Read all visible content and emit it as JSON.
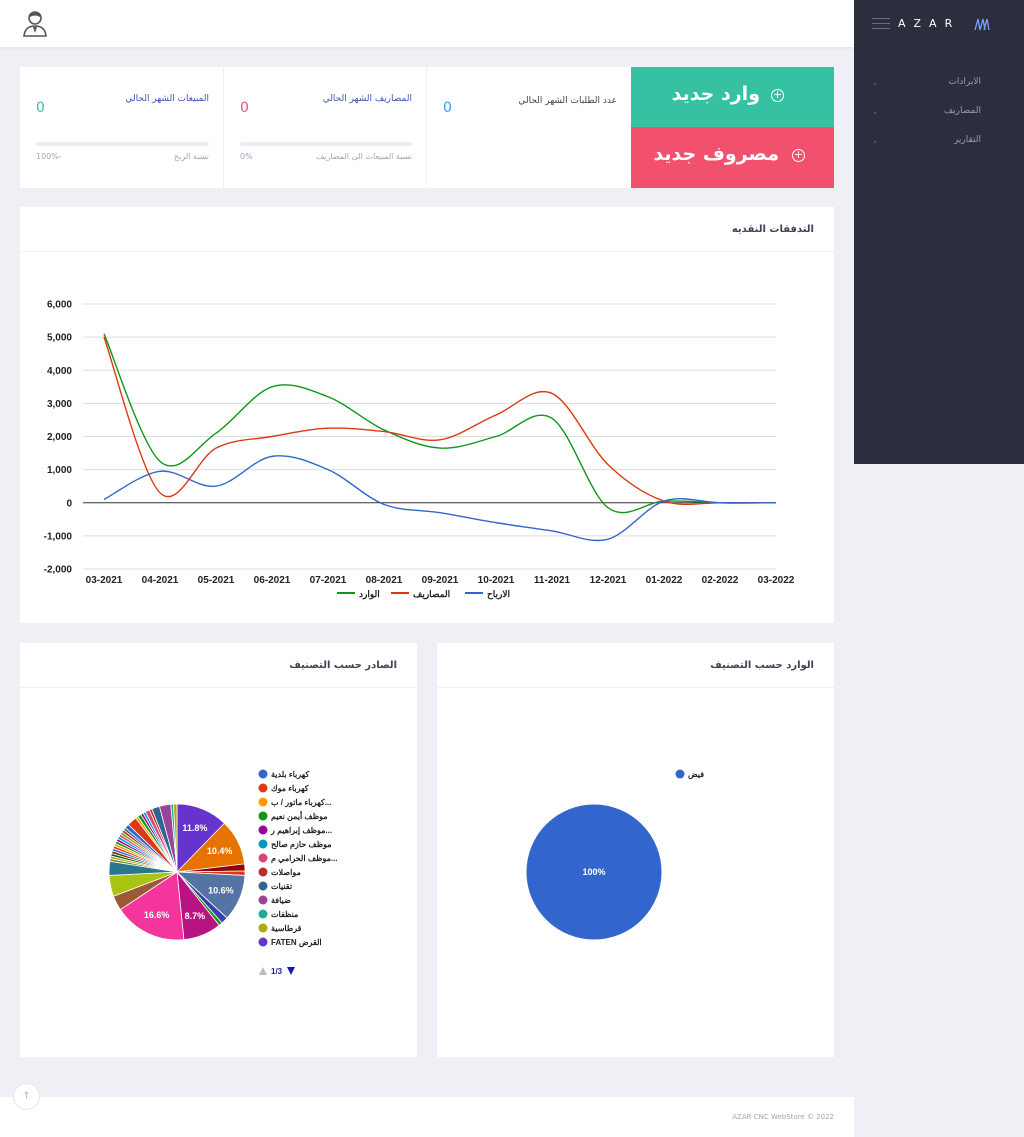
{
  "brand": {
    "name": "AZAR"
  },
  "sidebar": {
    "items": [
      {
        "label": "الايرادات"
      },
      {
        "label": "المصاريف"
      },
      {
        "label": "التقارير"
      }
    ]
  },
  "actions": {
    "new_income": "وارد جديد",
    "new_expense": "مصروف جديد"
  },
  "stats": {
    "sales": {
      "title": "المبيعات الشهر الحالي",
      "value": "0",
      "foot_label": "نسبة الربح",
      "foot_value": "-100%",
      "color": "#36c1a2"
    },
    "expenses": {
      "title": "المصاريف الشهر الحالي",
      "value": "0",
      "foot_label": "نسبة المبيعات الى المصاريف",
      "foot_value": "0%",
      "color": "#f2516e"
    },
    "orders": {
      "title": "عدد الطلبات الشهر الحالي",
      "value": "0",
      "color": "#3699ff"
    }
  },
  "cashflow": {
    "title": "التدفقات النقديه"
  },
  "out_by_category": {
    "title": "الصادر حسب التصنيف",
    "pager": "1/3"
  },
  "in_by_category": {
    "title": "الوارد حسب التصنيف"
  },
  "footer": {
    "copyright": "AZAR CNC WebStore © 2022"
  },
  "chart_data": [
    {
      "type": "line",
      "x": [
        "03-2021",
        "04-2021",
        "05-2021",
        "06-2021",
        "07-2021",
        "08-2021",
        "09-2021",
        "10-2021",
        "11-2021",
        "12-2021",
        "01-2022",
        "02-2022",
        "03-2022"
      ],
      "ylim": [
        -2000,
        6000
      ],
      "yticks": [
        "6,000",
        "5,000",
        "4,000",
        "3,000",
        "2,000",
        "1,000",
        "0",
        "-1,000",
        "-2,000"
      ],
      "grid": true,
      "legend_position": "bottom",
      "series": [
        {
          "name": "الوارد",
          "color": "#109618",
          "values": [
            5100,
            1250,
            2100,
            3500,
            3200,
            2200,
            1650,
            2000,
            2550,
            -150,
            50,
            0,
            0
          ]
        },
        {
          "name": "المصاريف",
          "color": "#dc3912",
          "values": [
            5000,
            300,
            1650,
            2000,
            2250,
            2150,
            1900,
            2650,
            3300,
            1150,
            50,
            0,
            0
          ]
        },
        {
          "name": "الارباح",
          "color": "#3366cc",
          "values": [
            100,
            950,
            500,
            1400,
            1000,
            -50,
            -300,
            -600,
            -850,
            -1100,
            50,
            0,
            0
          ]
        }
      ]
    },
    {
      "type": "pie",
      "legend": [
        {
          "name": "كهرباء بلدية",
          "color": "#3366cc"
        },
        {
          "name": "كهرباء موك",
          "color": "#dc3912"
        },
        {
          "name": "كهرباء ماتور / ب...",
          "color": "#ff9900"
        },
        {
          "name": "موظف أيمن نعيم",
          "color": "#109618"
        },
        {
          "name": "موظف إبراهيم ر...",
          "color": "#990099"
        },
        {
          "name": "موظف حازم صالح",
          "color": "#0099c6"
        },
        {
          "name": "موظف الحرامي م...",
          "color": "#dd4477"
        },
        {
          "name": "مواصلات",
          "color": "#b82e2e"
        },
        {
          "name": "تقنيات",
          "color": "#316395"
        },
        {
          "name": "ضيافة",
          "color": "#994499"
        },
        {
          "name": "منظفات",
          "color": "#22aa99"
        },
        {
          "name": "قرطاسية",
          "color": "#aaaa11"
        },
        {
          "name": "FATEN القرض",
          "color": "#6633cc"
        }
      ],
      "slices": [
        {
          "color": "#6633cc",
          "value": 11.8,
          "label": "11.8%"
        },
        {
          "color": "#e67300",
          "value": 10.4,
          "label": "10.4%"
        },
        {
          "color": "#8b0707",
          "value": 1.6
        },
        {
          "color": "#dc3912",
          "value": 1.0
        },
        {
          "color": "#5574a6",
          "value": 10.6,
          "label": "10.6%"
        },
        {
          "color": "#3b3eac",
          "value": 1.6
        },
        {
          "color": "#109618",
          "value": 0.8
        },
        {
          "color": "#b91383",
          "value": 8.7,
          "label": "8.7%"
        },
        {
          "color": "#f4359e",
          "value": 16.6,
          "label": "16.6%"
        },
        {
          "color": "#9c5935",
          "value": 3.4
        },
        {
          "color": "#a9c413",
          "value": 4.8
        },
        {
          "color": "#2a778d",
          "value": 3.2
        },
        {
          "color": "#668d1c",
          "value": 0.6
        },
        {
          "color": "#bea413",
          "value": 0.6
        },
        {
          "color": "#0c5922",
          "value": 0.6
        },
        {
          "color": "#743411",
          "value": 0.6
        },
        {
          "color": "#3366cc",
          "value": 0.6
        },
        {
          "color": "#dc3912",
          "value": 0.6
        },
        {
          "color": "#ff9900",
          "value": 0.6
        },
        {
          "color": "#109618",
          "value": 0.6
        },
        {
          "color": "#990099",
          "value": 0.6
        },
        {
          "color": "#0099c6",
          "value": 0.6
        },
        {
          "color": "#dd4477",
          "value": 0.6
        },
        {
          "color": "#66aa00",
          "value": 0.6
        },
        {
          "color": "#b82e2e",
          "value": 0.6
        },
        {
          "color": "#316395",
          "value": 0.6
        },
        {
          "color": "#3366cc",
          "value": 1.0
        },
        {
          "color": "#dc3912",
          "value": 2.2
        },
        {
          "color": "#ff9900",
          "value": 0.6
        },
        {
          "color": "#109618",
          "value": 0.8
        },
        {
          "color": "#990099",
          "value": 0.6
        },
        {
          "color": "#0099c6",
          "value": 0.6
        },
        {
          "color": "#dd4477",
          "value": 1.0
        },
        {
          "color": "#b82e2e",
          "value": 0.6
        },
        {
          "color": "#316395",
          "value": 1.8
        },
        {
          "color": "#994499",
          "value": 2.6
        },
        {
          "color": "#22aa99",
          "value": 0.6
        },
        {
          "color": "#aaaa11",
          "value": 0.8
        }
      ]
    },
    {
      "type": "pie",
      "legend": [
        {
          "name": "فيض",
          "color": "#3366cc"
        }
      ],
      "slices": [
        {
          "color": "#3366cc",
          "value": 100,
          "label": "100%"
        }
      ]
    }
  ]
}
